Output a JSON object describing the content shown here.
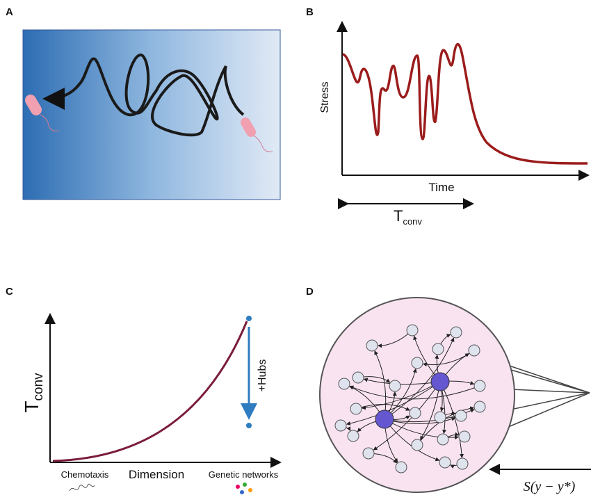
{
  "panels": {
    "a": {
      "label": "A"
    },
    "b": {
      "label": "B",
      "y_axis": "Stress",
      "x_axis": "Time",
      "span": {
        "main": "T",
        "sub": "conv"
      }
    },
    "c": {
      "label": "C",
      "y_axis": {
        "main": "T",
        "sub": "conv"
      },
      "x_axis": "Dimension",
      "x_left": "Chemotaxis",
      "x_right": "Genetic networks",
      "arrow": "+Hubs"
    },
    "d": {
      "label": "D",
      "feedback": "S(y − y*)"
    }
  }
}
